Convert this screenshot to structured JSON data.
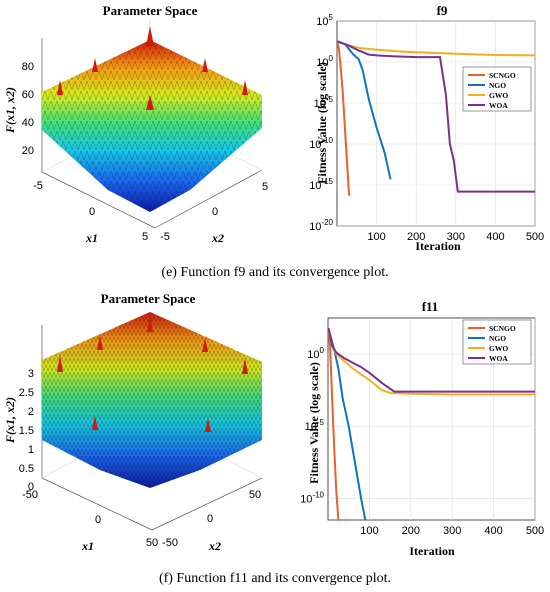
{
  "panels": [
    {
      "id": "e",
      "caption": "(e) Function f9 and its convergence plot.",
      "surface_title": "Parameter Space",
      "surface_zlabel": "F(x1, x2)",
      "surface_xlabel": "x1",
      "surface_ylabel": "x2",
      "surface_zticks": [
        "80",
        "60",
        "40",
        "20"
      ],
      "surface_x1_ticks": [
        "-5",
        "0",
        "5"
      ],
      "surface_x2_ticks": [
        "5",
        "0",
        "-5"
      ]
    },
    {
      "id": "f",
      "caption": "(f) Function f11 and its convergence plot.",
      "surface_title": "Parameter Space",
      "surface_zlabel": "F(x1, x2)",
      "surface_xlabel": "x1",
      "surface_ylabel": "x2",
      "surface_zticks": [
        "3",
        "2.5",
        "2",
        "1.5",
        "1",
        "0.5",
        "0"
      ],
      "surface_x1_ticks": [
        "-50",
        "0",
        "50"
      ],
      "surface_x2_ticks": [
        "50",
        "0",
        "-50"
      ]
    }
  ],
  "colors": {
    "SCNGO": "#e8602c",
    "NGO": "#0f73c0",
    "GWO": "#f2b01e",
    "WOA": "#7e2f8e"
  },
  "chart_data": [
    {
      "type": "line",
      "title": "f9",
      "xlabel": "Iteration",
      "ylabel": "Fitness Value (log scale)",
      "y_scale": "log",
      "xlim": [
        0,
        500
      ],
      "ylim_exp": [
        -20,
        5
      ],
      "x_ticks": [
        "100",
        "200",
        "300",
        "400",
        "500"
      ],
      "y_ticks": [
        "10^5",
        "10^0",
        "10^-5",
        "10^-10",
        "10^-15",
        "10^-20"
      ],
      "grid": true,
      "legend_position": "top-right",
      "series": [
        {
          "name": "SCNGO",
          "x": [
            1,
            5,
            10,
            15,
            20,
            25,
            30,
            31
          ],
          "log10_y": [
            2.5,
            1.5,
            -1.0,
            -4.0,
            -8.0,
            -12.0,
            -16.0,
            -16.3
          ]
        },
        {
          "name": "NGO",
          "x": [
            1,
            20,
            40,
            55,
            65,
            80,
            100,
            120,
            135
          ],
          "log10_y": [
            2.5,
            2.2,
            1.0,
            0.3,
            -1.0,
            -4.5,
            -8.0,
            -11.0,
            -14.3
          ]
        },
        {
          "name": "GWO",
          "x": [
            1,
            30,
            60,
            100,
            150,
            200,
            300,
            400,
            500
          ],
          "log10_y": [
            2.5,
            2.0,
            1.7,
            1.5,
            1.3,
            1.2,
            1.0,
            0.85,
            0.8
          ]
        },
        {
          "name": "WOA",
          "x": [
            1,
            30,
            50,
            80,
            100,
            140,
            200,
            260,
            275,
            285,
            295,
            305,
            400,
            500
          ],
          "log10_y": [
            2.5,
            2.0,
            1.5,
            0.9,
            0.8,
            0.7,
            0.6,
            0.6,
            -4.0,
            -10.0,
            -12.0,
            -15.8,
            -15.8,
            -15.8
          ]
        }
      ]
    },
    {
      "type": "line",
      "title": "f11",
      "xlabel": "Iteration",
      "ylabel": "Fitness Value (log scale)",
      "y_scale": "log",
      "xlim": [
        0,
        500
      ],
      "ylim_exp": [
        -11.5,
        2.5
      ],
      "x_ticks": [
        "100",
        "200",
        "300",
        "400",
        "500"
      ],
      "y_ticks": [
        "10^0",
        "10^-5",
        "10^-10"
      ],
      "grid": true,
      "legend_position": "top-right",
      "series": [
        {
          "name": "SCNGO",
          "x": [
            1,
            5,
            10,
            15,
            20,
            25
          ],
          "log10_y": [
            1.8,
            0.5,
            -3.0,
            -6.5,
            -9.5,
            -11.5
          ]
        },
        {
          "name": "NGO",
          "x": [
            1,
            15,
            25,
            35,
            50,
            65,
            80,
            90
          ],
          "log10_y": [
            1.8,
            0.3,
            -1.0,
            -3.0,
            -5.0,
            -7.5,
            -10.0,
            -11.5
          ]
        },
        {
          "name": "GWO",
          "x": [
            1,
            10,
            20,
            40,
            60,
            100,
            130,
            150,
            200,
            300,
            400,
            500
          ],
          "log10_y": [
            1.8,
            0.5,
            0.0,
            -0.5,
            -1.0,
            -1.8,
            -2.5,
            -2.7,
            -2.75,
            -2.8,
            -2.8,
            -2.8
          ]
        },
        {
          "name": "WOA",
          "x": [
            1,
            10,
            20,
            40,
            60,
            80,
            100,
            130,
            150,
            160,
            200,
            300,
            400,
            500
          ],
          "log10_y": [
            1.8,
            0.6,
            0.1,
            -0.3,
            -0.6,
            -0.9,
            -1.3,
            -2.0,
            -2.4,
            -2.6,
            -2.6,
            -2.6,
            -2.6,
            -2.6
          ]
        }
      ]
    }
  ]
}
